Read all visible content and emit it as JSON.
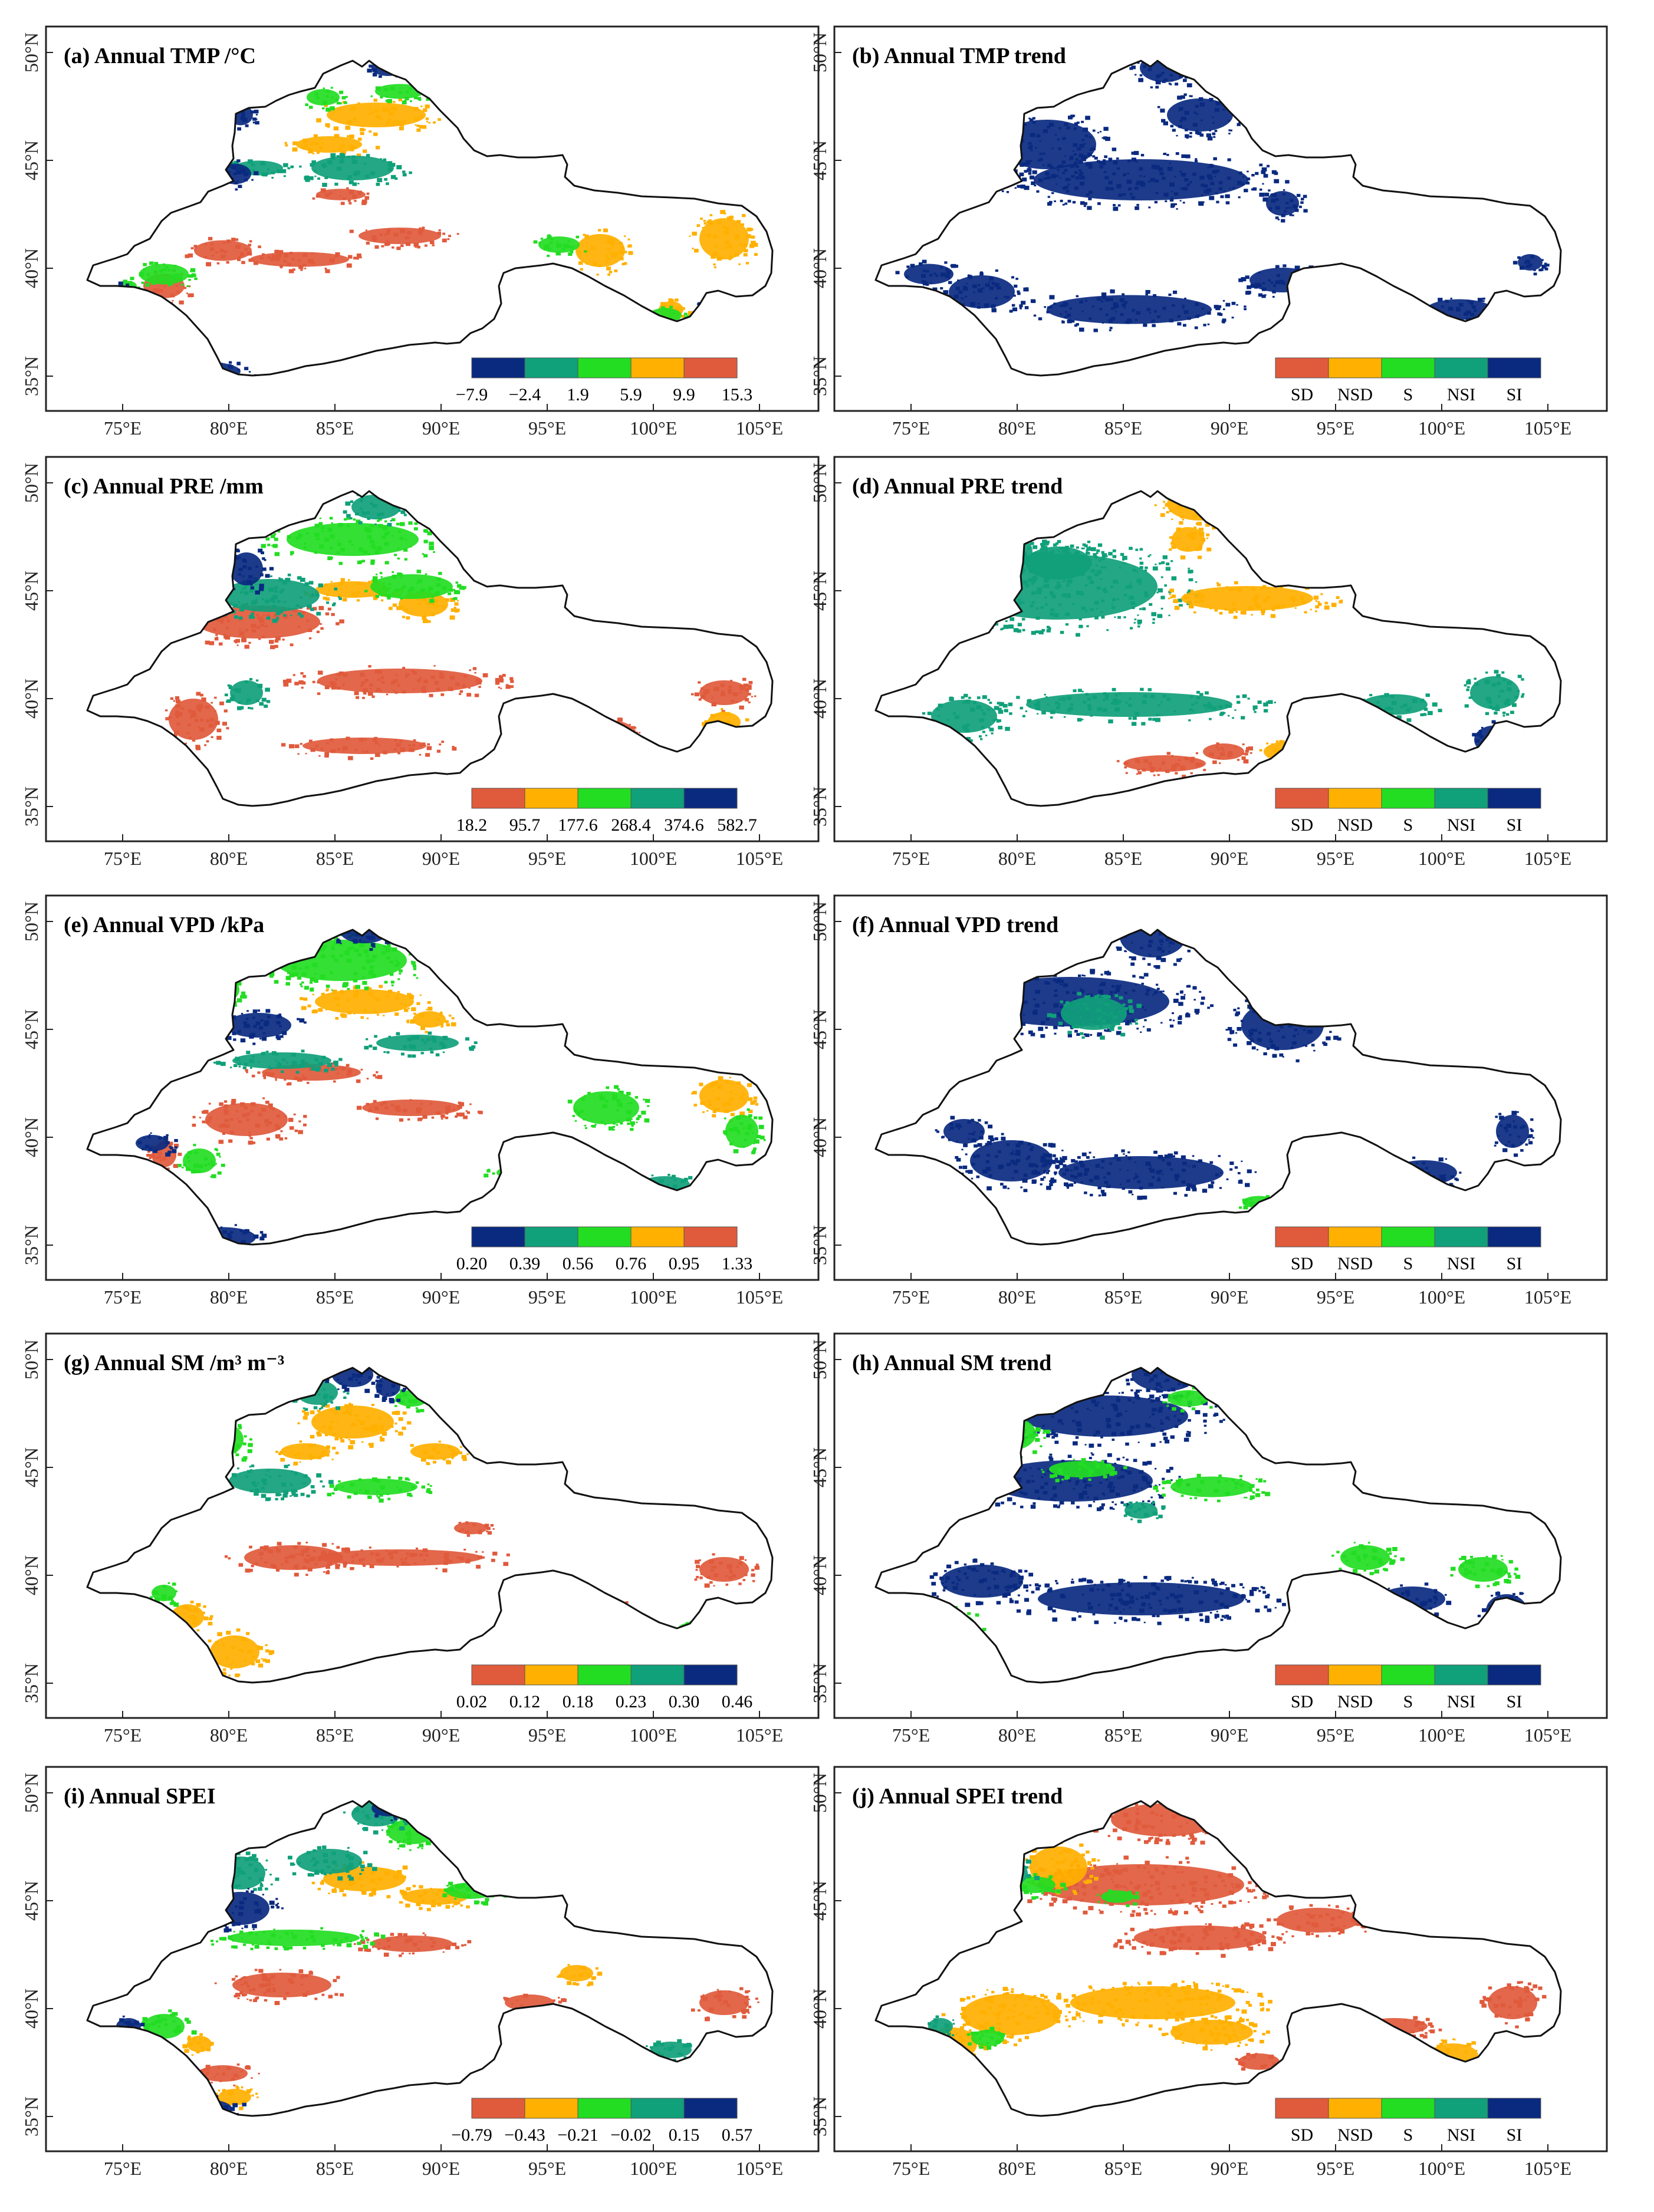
{
  "figure": {
    "lon_ticks": [
      "75°E",
      "80°E",
      "85°E",
      "90°E",
      "95°E",
      "100°E",
      "105°E"
    ],
    "lat_ticks": [
      "35°N",
      "40°N",
      "45°N",
      "50°N"
    ],
    "colors": {
      "red": "#e05a3c",
      "orange": "#ffb000",
      "green": "#22dd22",
      "teal": "#10a07a",
      "navy": "#0a2a80",
      "outline": "#111111"
    },
    "trend_legend": [
      "SD",
      "NSD",
      "S",
      "NSI",
      "SI"
    ],
    "panels": [
      {
        "id": "a",
        "title": "(a) Annual TMP /°C",
        "legend": [
          "−7.9",
          "−2.4",
          "1.9",
          "5.9",
          "9.9",
          "15.3"
        ],
        "legend_colors": [
          "navy",
          "teal",
          "green",
          "orange",
          "red"
        ]
      },
      {
        "id": "b",
        "title": "(b) Annual TMP trend",
        "legend_colors": [
          "red",
          "orange",
          "green",
          "teal",
          "navy"
        ]
      },
      {
        "id": "c",
        "title": "(c) Annual PRE /mm",
        "legend": [
          "18.2",
          "95.7",
          "177.6",
          "268.4",
          "374.6",
          "582.7"
        ],
        "legend_colors": [
          "red",
          "orange",
          "green",
          "teal",
          "navy"
        ]
      },
      {
        "id": "d",
        "title": "(d) Annual PRE trend",
        "legend_colors": [
          "red",
          "orange",
          "green",
          "teal",
          "navy"
        ]
      },
      {
        "id": "e",
        "title": "(e) Annual VPD /kPa",
        "legend": [
          "0.20",
          "0.39",
          "0.56",
          "0.76",
          "0.95",
          "1.33"
        ],
        "legend_colors": [
          "navy",
          "teal",
          "green",
          "orange",
          "red"
        ]
      },
      {
        "id": "f",
        "title": "(f) Annual VPD trend",
        "legend_colors": [
          "red",
          "orange",
          "green",
          "teal",
          "navy"
        ]
      },
      {
        "id": "g",
        "title": "(g) Annual SM /m³ m⁻³",
        "legend": [
          "0.02",
          "0.12",
          "0.18",
          "0.23",
          "0.30",
          "0.46"
        ],
        "legend_colors": [
          "red",
          "orange",
          "green",
          "teal",
          "navy"
        ]
      },
      {
        "id": "h",
        "title": "(h) Annual SM trend",
        "legend_colors": [
          "red",
          "orange",
          "green",
          "teal",
          "navy"
        ]
      },
      {
        "id": "i",
        "title": "(i) Annual SPEI",
        "legend": [
          "−0.79",
          "−0.43",
          "−0.21",
          "−0.02",
          "0.15",
          "0.57"
        ],
        "legend_colors": [
          "red",
          "orange",
          "green",
          "teal",
          "navy"
        ]
      },
      {
        "id": "j",
        "title": "(j) Annual SPEI  trend",
        "legend_colors": [
          "red",
          "orange",
          "green",
          "teal",
          "navy"
        ]
      }
    ]
  }
}
